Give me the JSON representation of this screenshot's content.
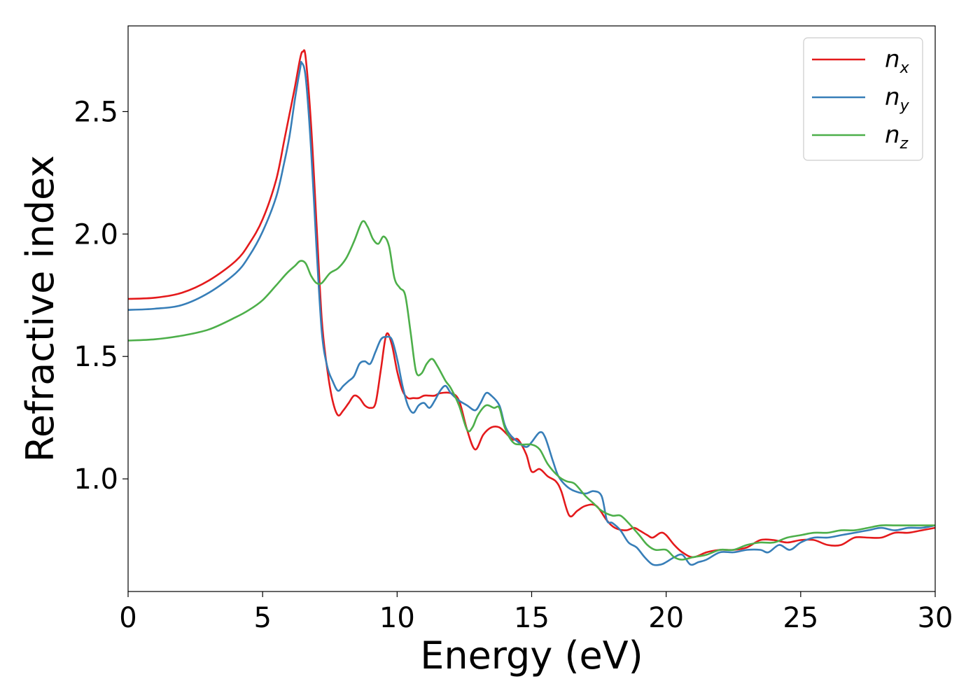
{
  "chart_data": {
    "type": "line",
    "title": "",
    "xlabel": "Energy (eV)",
    "ylabel": "Refractive index",
    "xlim": [
      0,
      30
    ],
    "ylim": [
      0.54,
      2.85
    ],
    "xticks": [
      0,
      5,
      10,
      15,
      20,
      25,
      30
    ],
    "xtick_labels": [
      "0",
      "5",
      "10",
      "15",
      "20",
      "25",
      "30"
    ],
    "yticks": [
      1.0,
      1.5,
      2.0,
      2.5
    ],
    "ytick_labels": [
      "1.0",
      "1.5",
      "2.0",
      "2.5"
    ],
    "grid": false,
    "legend_position": "top-right",
    "series": [
      {
        "name": "n_x",
        "legend_main": "n",
        "legend_sub": "x",
        "color": "#e41a1c",
        "points": [
          [
            0,
            1.735
          ],
          [
            1,
            1.74
          ],
          [
            2,
            1.76
          ],
          [
            3,
            1.81
          ],
          [
            4,
            1.89
          ],
          [
            4.5,
            1.96
          ],
          [
            5,
            2.06
          ],
          [
            5.5,
            2.22
          ],
          [
            5.8,
            2.38
          ],
          [
            6.0,
            2.49
          ],
          [
            6.2,
            2.6
          ],
          [
            6.4,
            2.72
          ],
          [
            6.5,
            2.745
          ],
          [
            6.6,
            2.72
          ],
          [
            6.8,
            2.45
          ],
          [
            7.0,
            2.05
          ],
          [
            7.2,
            1.65
          ],
          [
            7.4,
            1.45
          ],
          [
            7.6,
            1.32
          ],
          [
            7.8,
            1.26
          ],
          [
            8.0,
            1.28
          ],
          [
            8.2,
            1.31
          ],
          [
            8.4,
            1.34
          ],
          [
            8.6,
            1.33
          ],
          [
            8.8,
            1.3
          ],
          [
            9.0,
            1.29
          ],
          [
            9.2,
            1.31
          ],
          [
            9.4,
            1.45
          ],
          [
            9.6,
            1.59
          ],
          [
            9.8,
            1.55
          ],
          [
            10.0,
            1.44
          ],
          [
            10.2,
            1.36
          ],
          [
            10.4,
            1.33
          ],
          [
            10.6,
            1.33
          ],
          [
            10.8,
            1.33
          ],
          [
            11.0,
            1.34
          ],
          [
            11.2,
            1.34
          ],
          [
            11.4,
            1.34
          ],
          [
            11.6,
            1.35
          ],
          [
            12.0,
            1.35
          ],
          [
            12.3,
            1.32
          ],
          [
            12.6,
            1.2
          ],
          [
            12.9,
            1.12
          ],
          [
            13.2,
            1.18
          ],
          [
            13.5,
            1.21
          ],
          [
            13.8,
            1.21
          ],
          [
            14.1,
            1.18
          ],
          [
            14.3,
            1.16
          ],
          [
            14.5,
            1.16
          ],
          [
            14.8,
            1.1
          ],
          [
            15.0,
            1.03
          ],
          [
            15.3,
            1.04
          ],
          [
            15.6,
            1.01
          ],
          [
            15.9,
            0.99
          ],
          [
            16.1,
            0.95
          ],
          [
            16.4,
            0.85
          ],
          [
            16.7,
            0.87
          ],
          [
            17.0,
            0.89
          ],
          [
            17.4,
            0.89
          ],
          [
            17.8,
            0.83
          ],
          [
            18.1,
            0.8
          ],
          [
            18.5,
            0.79
          ],
          [
            18.8,
            0.8
          ],
          [
            19.0,
            0.79
          ],
          [
            19.3,
            0.77
          ],
          [
            19.5,
            0.76
          ],
          [
            19.8,
            0.78
          ],
          [
            20.0,
            0.77
          ],
          [
            20.3,
            0.73
          ],
          [
            20.6,
            0.7
          ],
          [
            21.0,
            0.68
          ],
          [
            21.5,
            0.7
          ],
          [
            22.0,
            0.71
          ],
          [
            22.5,
            0.71
          ],
          [
            23.0,
            0.72
          ],
          [
            23.5,
            0.75
          ],
          [
            24.0,
            0.75
          ],
          [
            24.5,
            0.74
          ],
          [
            25.0,
            0.75
          ],
          [
            25.5,
            0.75
          ],
          [
            26.0,
            0.73
          ],
          [
            26.5,
            0.73
          ],
          [
            27.0,
            0.76
          ],
          [
            27.5,
            0.76
          ],
          [
            28.0,
            0.76
          ],
          [
            28.5,
            0.78
          ],
          [
            29.0,
            0.78
          ],
          [
            29.5,
            0.79
          ],
          [
            30.0,
            0.8
          ]
        ]
      },
      {
        "name": "n_y",
        "legend_main": "n",
        "legend_sub": "y",
        "color": "#377eb8",
        "points": [
          [
            0,
            1.69
          ],
          [
            1,
            1.695
          ],
          [
            2,
            1.71
          ],
          [
            3,
            1.76
          ],
          [
            4,
            1.84
          ],
          [
            4.5,
            1.91
          ],
          [
            5,
            2.01
          ],
          [
            5.5,
            2.15
          ],
          [
            5.8,
            2.29
          ],
          [
            6.0,
            2.4
          ],
          [
            6.2,
            2.55
          ],
          [
            6.4,
            2.68
          ],
          [
            6.45,
            2.7
          ],
          [
            6.6,
            2.64
          ],
          [
            6.8,
            2.35
          ],
          [
            7.0,
            1.95
          ],
          [
            7.2,
            1.6
          ],
          [
            7.4,
            1.46
          ],
          [
            7.6,
            1.4
          ],
          [
            7.8,
            1.36
          ],
          [
            8.0,
            1.38
          ],
          [
            8.2,
            1.4
          ],
          [
            8.4,
            1.42
          ],
          [
            8.6,
            1.47
          ],
          [
            8.8,
            1.48
          ],
          [
            9.0,
            1.47
          ],
          [
            9.2,
            1.52
          ],
          [
            9.4,
            1.57
          ],
          [
            9.6,
            1.58
          ],
          [
            9.8,
            1.57
          ],
          [
            10.0,
            1.49
          ],
          [
            10.2,
            1.38
          ],
          [
            10.4,
            1.3
          ],
          [
            10.6,
            1.27
          ],
          [
            10.8,
            1.3
          ],
          [
            11.0,
            1.31
          ],
          [
            11.2,
            1.29
          ],
          [
            11.4,
            1.32
          ],
          [
            11.6,
            1.36
          ],
          [
            11.8,
            1.38
          ],
          [
            12.0,
            1.35
          ],
          [
            12.3,
            1.32
          ],
          [
            12.6,
            1.3
          ],
          [
            12.9,
            1.28
          ],
          [
            13.1,
            1.31
          ],
          [
            13.3,
            1.35
          ],
          [
            13.5,
            1.34
          ],
          [
            13.8,
            1.3
          ],
          [
            14.0,
            1.22
          ],
          [
            14.2,
            1.18
          ],
          [
            14.5,
            1.15
          ],
          [
            14.8,
            1.13
          ],
          [
            15.0,
            1.15
          ],
          [
            15.3,
            1.19
          ],
          [
            15.5,
            1.17
          ],
          [
            15.8,
            1.07
          ],
          [
            16.0,
            1.01
          ],
          [
            16.3,
            0.97
          ],
          [
            16.6,
            0.95
          ],
          [
            17.0,
            0.94
          ],
          [
            17.3,
            0.95
          ],
          [
            17.6,
            0.93
          ],
          [
            17.8,
            0.83
          ],
          [
            18.0,
            0.82
          ],
          [
            18.3,
            0.79
          ],
          [
            18.6,
            0.74
          ],
          [
            18.9,
            0.72
          ],
          [
            19.2,
            0.68
          ],
          [
            19.5,
            0.65
          ],
          [
            19.8,
            0.65
          ],
          [
            20.0,
            0.66
          ],
          [
            20.3,
            0.68
          ],
          [
            20.6,
            0.69
          ],
          [
            20.9,
            0.65
          ],
          [
            21.2,
            0.66
          ],
          [
            21.5,
            0.67
          ],
          [
            22.0,
            0.7
          ],
          [
            22.5,
            0.7
          ],
          [
            23.0,
            0.71
          ],
          [
            23.5,
            0.71
          ],
          [
            23.8,
            0.7
          ],
          [
            24.2,
            0.73
          ],
          [
            24.6,
            0.71
          ],
          [
            25.0,
            0.74
          ],
          [
            25.5,
            0.76
          ],
          [
            26.0,
            0.76
          ],
          [
            26.5,
            0.77
          ],
          [
            27.0,
            0.78
          ],
          [
            27.5,
            0.79
          ],
          [
            28.0,
            0.8
          ],
          [
            28.5,
            0.79
          ],
          [
            29.0,
            0.8
          ],
          [
            29.5,
            0.8
          ],
          [
            30.0,
            0.81
          ]
        ]
      },
      {
        "name": "n_z",
        "legend_main": "n",
        "legend_sub": "z",
        "color": "#4daf4a",
        "points": [
          [
            0,
            1.565
          ],
          [
            1,
            1.57
          ],
          [
            2,
            1.585
          ],
          [
            3,
            1.61
          ],
          [
            4,
            1.66
          ],
          [
            4.5,
            1.69
          ],
          [
            5,
            1.73
          ],
          [
            5.5,
            1.79
          ],
          [
            5.9,
            1.84
          ],
          [
            6.2,
            1.87
          ],
          [
            6.4,
            1.89
          ],
          [
            6.6,
            1.88
          ],
          [
            6.8,
            1.83
          ],
          [
            7.0,
            1.8
          ],
          [
            7.2,
            1.8
          ],
          [
            7.5,
            1.84
          ],
          [
            7.8,
            1.86
          ],
          [
            8.1,
            1.9
          ],
          [
            8.4,
            1.97
          ],
          [
            8.7,
            2.05
          ],
          [
            8.9,
            2.03
          ],
          [
            9.1,
            1.98
          ],
          [
            9.3,
            1.96
          ],
          [
            9.5,
            1.99
          ],
          [
            9.7,
            1.95
          ],
          [
            9.9,
            1.82
          ],
          [
            10.1,
            1.78
          ],
          [
            10.3,
            1.75
          ],
          [
            10.5,
            1.6
          ],
          [
            10.7,
            1.44
          ],
          [
            10.9,
            1.43
          ],
          [
            11.1,
            1.47
          ],
          [
            11.3,
            1.49
          ],
          [
            11.5,
            1.46
          ],
          [
            11.8,
            1.4
          ],
          [
            12.0,
            1.37
          ],
          [
            12.3,
            1.3
          ],
          [
            12.6,
            1.2
          ],
          [
            12.8,
            1.21
          ],
          [
            13.0,
            1.26
          ],
          [
            13.3,
            1.3
          ],
          [
            13.6,
            1.29
          ],
          [
            13.8,
            1.29
          ],
          [
            14.0,
            1.21
          ],
          [
            14.3,
            1.15
          ],
          [
            14.6,
            1.14
          ],
          [
            15.0,
            1.14
          ],
          [
            15.3,
            1.12
          ],
          [
            15.6,
            1.06
          ],
          [
            16.0,
            1.01
          ],
          [
            16.3,
            0.99
          ],
          [
            16.6,
            0.98
          ],
          [
            17.0,
            0.93
          ],
          [
            17.3,
            0.9
          ],
          [
            17.6,
            0.87
          ],
          [
            18.0,
            0.85
          ],
          [
            18.3,
            0.85
          ],
          [
            18.6,
            0.82
          ],
          [
            19.0,
            0.77
          ],
          [
            19.3,
            0.73
          ],
          [
            19.6,
            0.71
          ],
          [
            20.0,
            0.71
          ],
          [
            20.3,
            0.68
          ],
          [
            20.6,
            0.67
          ],
          [
            21.0,
            0.68
          ],
          [
            21.5,
            0.69
          ],
          [
            22.0,
            0.71
          ],
          [
            22.5,
            0.71
          ],
          [
            23.0,
            0.73
          ],
          [
            23.5,
            0.74
          ],
          [
            24.0,
            0.74
          ],
          [
            24.5,
            0.76
          ],
          [
            25.0,
            0.77
          ],
          [
            25.5,
            0.78
          ],
          [
            26.0,
            0.78
          ],
          [
            26.5,
            0.79
          ],
          [
            27.0,
            0.79
          ],
          [
            27.5,
            0.8
          ],
          [
            28.0,
            0.81
          ],
          [
            28.5,
            0.81
          ],
          [
            29.0,
            0.81
          ],
          [
            29.5,
            0.81
          ],
          [
            30.0,
            0.81
          ]
        ]
      }
    ]
  }
}
